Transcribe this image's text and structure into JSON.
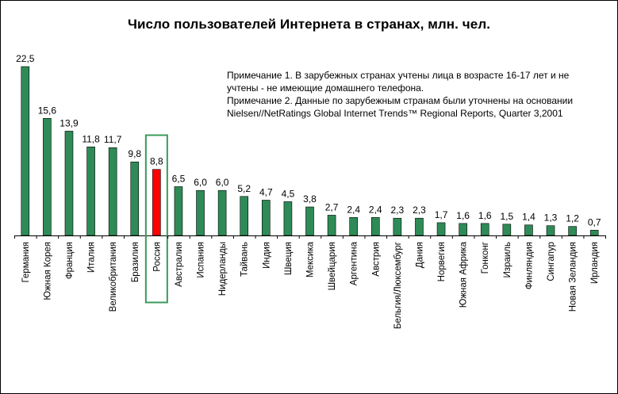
{
  "title": "Число пользователей Интернета в странах, млн. чел.",
  "notes": [
    "Примечание 1. В зарубежных странах учтены лица в возрасте 16-17 лет и не",
    "учтены - не имеющие домашнего телефона.",
    "Примечание 2. Данные по зарубежным странам были уточнены на основании",
    "Nielsen//NetRatings Global Internet Trends™ Regional Reports, Quarter 3,2001"
  ],
  "colors": {
    "bar": "#2e8b57",
    "highlight_bar": "#ff0000",
    "highlight_box": "#3a9a5a",
    "axis": "#000000"
  },
  "chart_data": {
    "type": "bar",
    "title": "Число пользователей Интернета в странах, млн. чел.",
    "xlabel": "",
    "ylabel": "",
    "ylim": [
      0,
      22.5
    ],
    "grid": false,
    "legend": "none",
    "highlight_category": "Россия",
    "categories": [
      "Германия",
      "Южная Корея",
      "Франция",
      "Италия",
      "Великобритания",
      "Бразилия",
      "Россия",
      "Австралия",
      "Испания",
      "Нидерланды",
      "Тайвань",
      "Индия",
      "Швеция",
      "Мексика",
      "Швейцария",
      "Аргентина",
      "Австрия",
      "Бельгия/Люксембург",
      "Дания",
      "Норвегия",
      "Южная Африка",
      "Гонконг",
      "Израиль",
      "Финляндия",
      "Сингапур",
      "Новая Зеландия",
      "Ирландия"
    ],
    "values": [
      22.5,
      15.6,
      13.9,
      11.8,
      11.7,
      9.8,
      8.8,
      6.5,
      6.0,
      6.0,
      5.2,
      4.7,
      4.5,
      3.8,
      2.7,
      2.4,
      2.4,
      2.3,
      2.3,
      1.7,
      1.6,
      1.6,
      1.5,
      1.4,
      1.3,
      1.2,
      0.7
    ],
    "value_labels": [
      "22,5",
      "15,6",
      "13,9",
      "11,8",
      "11,7",
      "9,8",
      "8,8",
      "6,5",
      "6,0",
      "6,0",
      "5,2",
      "4,7",
      "4,5",
      "3,8",
      "2,7",
      "2,4",
      "2,4",
      "2,3",
      "2,3",
      "1,7",
      "1,6",
      "1,6",
      "1,5",
      "1,4",
      "1,3",
      "1,2",
      "0,7"
    ]
  }
}
